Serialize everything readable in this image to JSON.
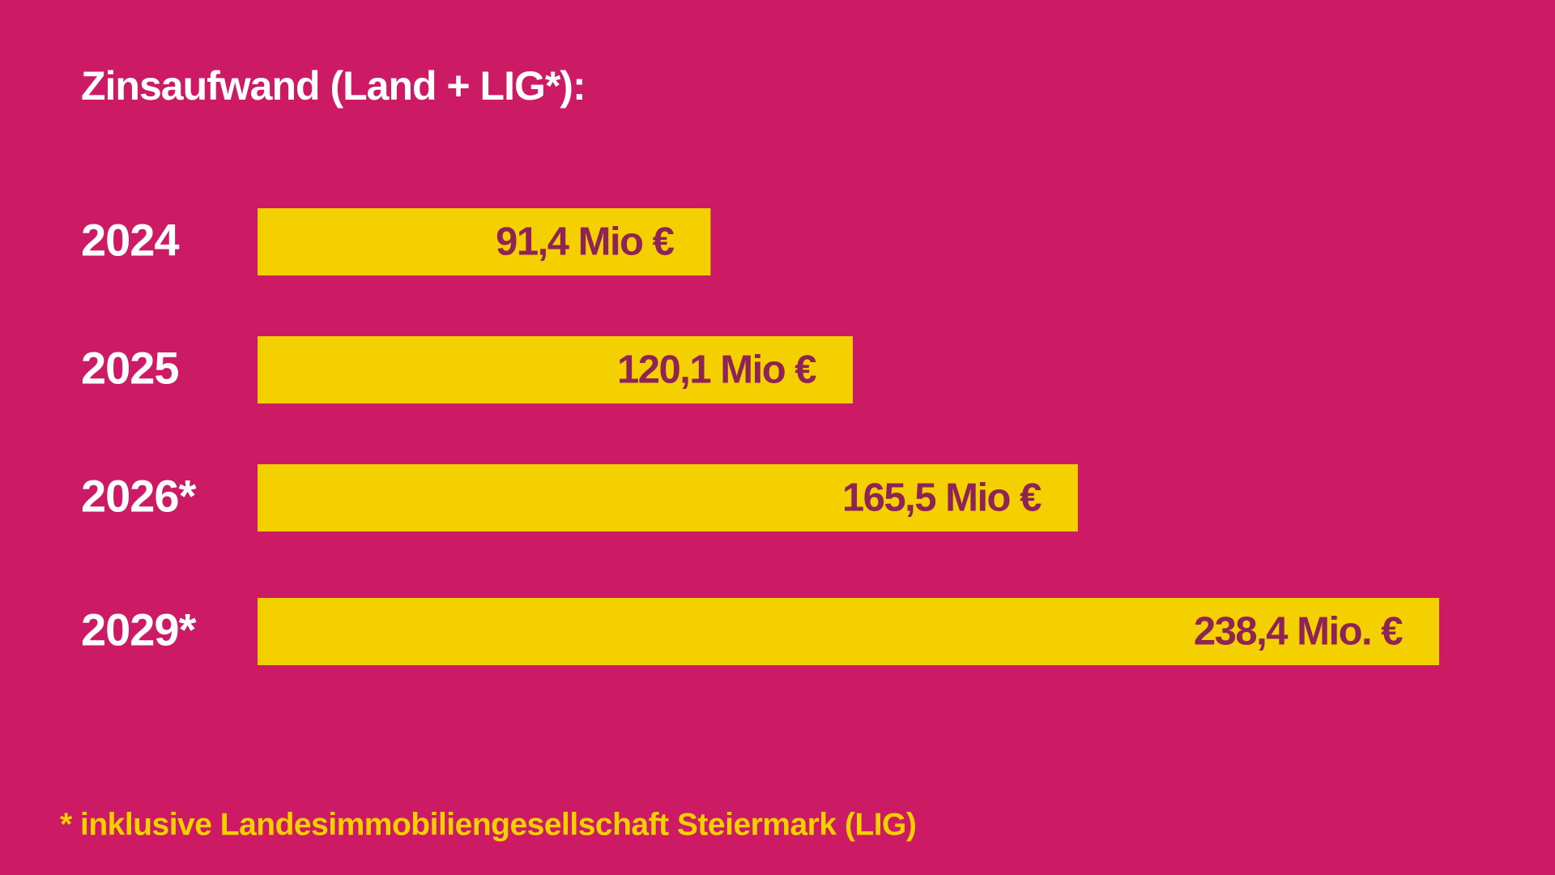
{
  "chart_data": {
    "type": "bar",
    "orientation": "horizontal",
    "title": "Zinsaufwand (Land + LIG*):",
    "categories": [
      "2024",
      "2025",
      "2026*",
      "2029*"
    ],
    "values": [
      91.4,
      120.1,
      165.5,
      238.4
    ],
    "value_labels": [
      "91,4 Mio €",
      "120,1 Mio €",
      "165,5 Mio €",
      "238,4 Mio. €"
    ],
    "color": "#f5d000",
    "footnote": "* inklusive Landesimmobiliengesellschaft Steiermark (LIG)"
  }
}
